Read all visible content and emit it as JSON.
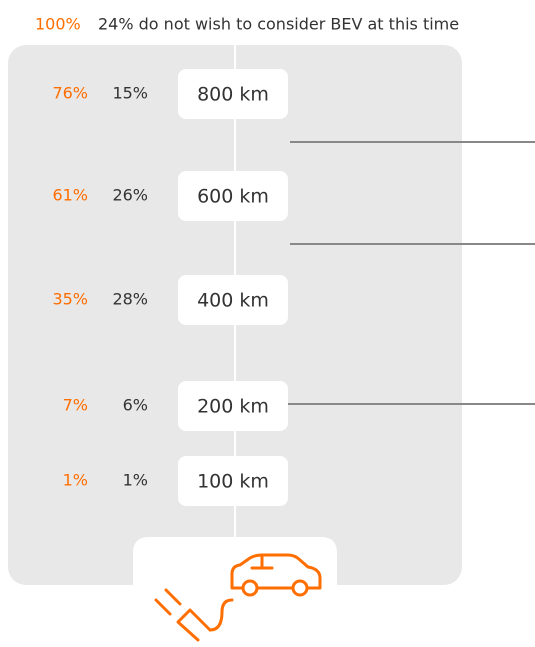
{
  "header": {
    "total": "100%",
    "note": "24% do not wish to consider BEV at this time"
  },
  "rows": [
    {
      "cumulative": "76%",
      "share": "15%",
      "range": "800 km"
    },
    {
      "cumulative": "61%",
      "share": "26%",
      "range": "600 km"
    },
    {
      "cumulative": "35%",
      "share": "28%",
      "range": "400 km"
    },
    {
      "cumulative": "7%",
      "share": "6%",
      "range": "200 km"
    },
    {
      "cumulative": "1%",
      "share": "1%",
      "range": "100 km"
    }
  ]
}
